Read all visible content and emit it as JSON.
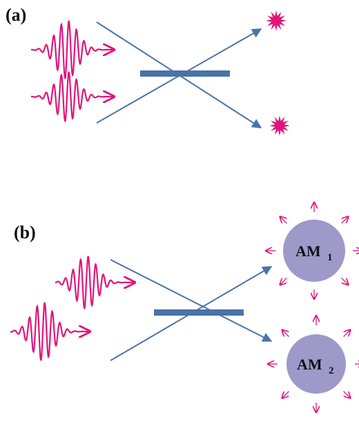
{
  "panels": [
    {
      "label": "(a)"
    },
    {
      "label": "(b)",
      "nodes": [
        {
          "label": "AM",
          "subscript": "1"
        },
        {
          "label": "AM",
          "subscript": "2"
        }
      ]
    }
  ]
}
